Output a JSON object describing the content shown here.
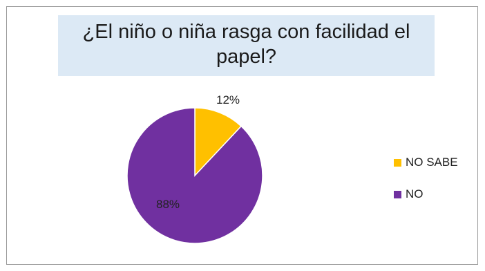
{
  "chart_data": {
    "type": "pie",
    "title": "¿El niño o niña rasga con facilidad el papel?",
    "slices": [
      {
        "label": "NO SABE",
        "value": 12,
        "display": "12%",
        "color": "#ffc000"
      },
      {
        "label": "NO",
        "value": 88,
        "display": "88%",
        "color": "#7030a0"
      }
    ],
    "legend": "right"
  }
}
